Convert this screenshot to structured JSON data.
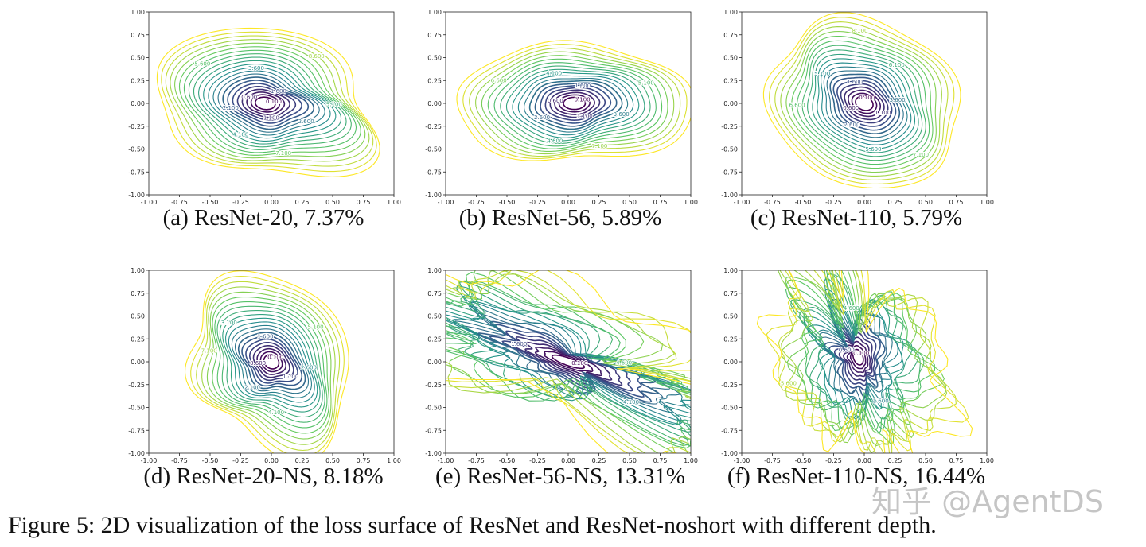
{
  "figure": {
    "caption": "Figure 5: 2D visualization of the loss surface of ResNet and ResNet-noshort with different depth.",
    "ticks": [
      "-1.00",
      "-0.75",
      "-0.50",
      "-0.25",
      "0.00",
      "0.25",
      "0.50",
      "0.75",
      "1.00"
    ],
    "colormap": "viridis",
    "panels": [
      {
        "caption": "(a) ResNet-20, 7.37%",
        "contour_labels": [
          "0.100",
          "0.600",
          "1.100",
          "1.600",
          "2.100",
          "2.600",
          "3.600",
          "4.100",
          "5.100",
          "5.600",
          "7.100",
          "8.600"
        ]
      },
      {
        "caption": "(b) ResNet-56, 5.89%",
        "contour_labels": [
          "0.100",
          "0.600",
          "1.100",
          "1.600",
          "2.600",
          "3.600",
          "4.100",
          "4.600",
          "5.100",
          "6.600",
          "7.100"
        ]
      },
      {
        "caption": "(c) ResNet-110, 5.79%",
        "contour_labels": [
          "0.100",
          "0.600",
          "1.100",
          "1.600",
          "2.600",
          "3.600",
          "5.100",
          "5.600",
          "6.100",
          "6.600",
          "7.100",
          "8.100"
        ]
      },
      {
        "caption": "(d) ResNet-20-NS, 8.18%",
        "contour_labels": [
          "0.100",
          "0.600",
          "1.100",
          "1.600",
          "2.100",
          "2.600",
          "3.100",
          "4.100",
          "5.100",
          "7.100"
        ]
      },
      {
        "caption": "(e) ResNet-56-NS, 13.31%",
        "contour_labels": [
          "0.100",
          "1.600",
          "4.100",
          "4.600",
          "6.600"
        ]
      },
      {
        "caption": "(f) ResNet-110-NS, 16.44%",
        "contour_labels": [
          "0.100",
          "0.600",
          "1.600",
          "4.600",
          "5.600"
        ]
      }
    ]
  },
  "watermark": "知乎 @AgentDS"
}
